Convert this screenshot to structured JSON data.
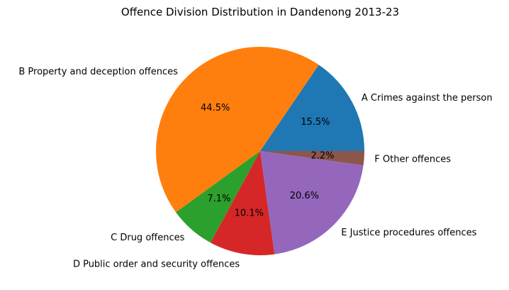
{
  "chart_data": {
    "type": "pie",
    "title": "Offence Division Distribution in Dandenong 2013-23",
    "start_angle": "0 degrees (3 o'clock), counterclockwise",
    "slices": [
      {
        "label": "A Crimes against the person",
        "value": 15.5,
        "pct_label": "15.5%",
        "color": "#1f77b4"
      },
      {
        "label": "B Property and deception offences",
        "value": 44.5,
        "pct_label": "44.5%",
        "color": "#ff7f0e"
      },
      {
        "label": "C Drug offences",
        "value": 7.1,
        "pct_label": "7.1%",
        "color": "#2ca02c"
      },
      {
        "label": "D Public order and security offences",
        "value": 10.1,
        "pct_label": "10.1%",
        "color": "#d62728"
      },
      {
        "label": "E Justice procedures offences",
        "value": 20.6,
        "pct_label": "20.6%",
        "color": "#9467bd"
      },
      {
        "label": "F Other offences",
        "value": 2.2,
        "pct_label": "2.2%",
        "color": "#8c564b"
      }
    ]
  }
}
